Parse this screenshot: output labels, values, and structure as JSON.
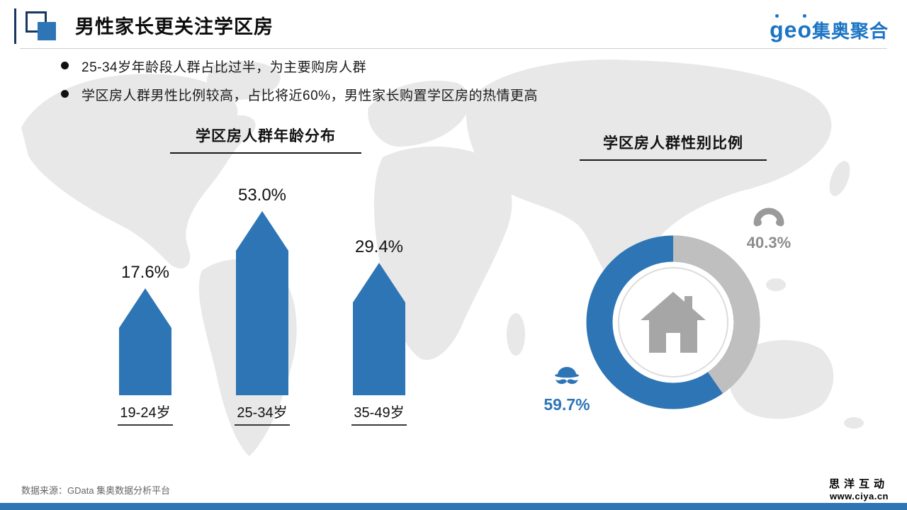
{
  "header": {
    "title": "男性家长更关注学区房",
    "logo_geo": "geo",
    "logo_name": "集奥聚合"
  },
  "bullets": [
    "25-34岁年龄段人群占比过半，为主要购房人群",
    "学区房人群男性比例较高，占比将近60%，男性家长购置学区房的热情更高"
  ],
  "chart_data": [
    {
      "type": "bar",
      "title": "学区房人群年龄分布",
      "categories": [
        "19-24岁",
        "25-34岁",
        "35-49岁"
      ],
      "values": [
        17.6,
        53.0,
        29.4
      ],
      "data_labels": [
        "17.6%",
        "53.0%",
        "29.4%"
      ],
      "bar_color": "#2e75b6",
      "bar_style": "upward-arrow pictorial bars, value labels above, category labels underlined below",
      "ylim": [
        0,
        60
      ]
    },
    {
      "type": "pie",
      "title": "学区房人群性别比例",
      "donut": true,
      "categories": [
        "男性",
        "女性"
      ],
      "values": [
        59.7,
        40.3
      ],
      "data_labels": [
        "59.7%",
        "40.3%"
      ],
      "colors": [
        "#2e75b6",
        "#bfbfbf"
      ],
      "center_icon": "house-icon",
      "legend_icons": [
        "male-hat-mustache-icon",
        "female-hair-icon"
      ]
    }
  ],
  "footer": {
    "source": "数据来源：GData  集奥数据分析平台",
    "brand": "思洋互动",
    "url": "www.ciya.cn"
  }
}
